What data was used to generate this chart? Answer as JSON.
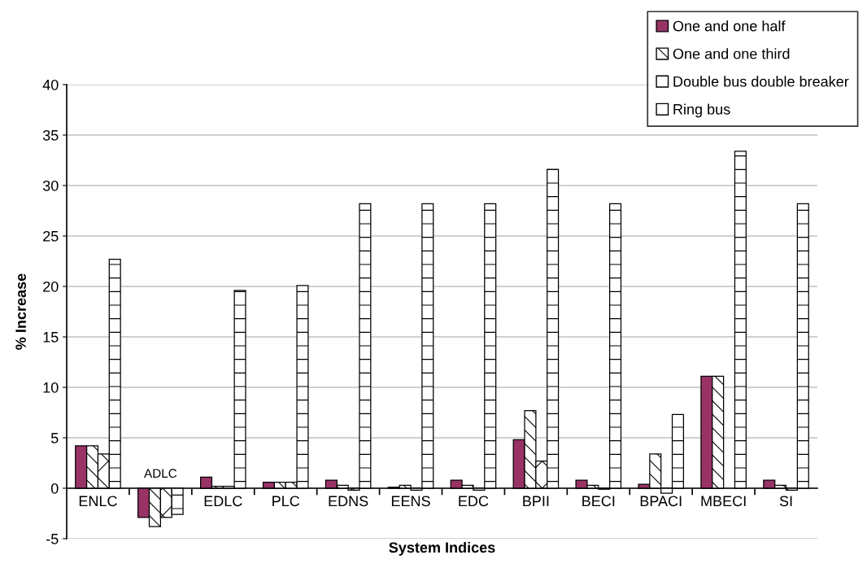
{
  "chart_data": {
    "type": "bar",
    "xlabel": "System Indices",
    "ylabel": "% Increase",
    "categories": [
      "ENLC",
      "ADLC",
      "EDLC",
      "PLC",
      "EDNS",
      "EENS",
      "EDC",
      "BPII",
      "BECI",
      "BPACI",
      "MBECI",
      "SI"
    ],
    "series": [
      {
        "name": "One and one half",
        "color": "#993366",
        "values": [
          4.2,
          -2.9,
          1.1,
          0.6,
          0.8,
          0.1,
          0.8,
          4.8,
          0.8,
          0.4,
          11.1,
          0.8
        ]
      },
      {
        "name": "One and one third",
        "color": "#ffffff",
        "values": [
          4.2,
          -3.8,
          0.2,
          0.6,
          0.3,
          0.3,
          0.3,
          7.7,
          0.3,
          3.4,
          11.1,
          0.3
        ]
      },
      {
        "name": "Double bus double breaker",
        "color": "#ffffff",
        "values": [
          3.4,
          -2.9,
          0.2,
          0.6,
          -0.2,
          -0.2,
          -0.2,
          2.7,
          -0.1,
          -0.5,
          null,
          -0.2
        ]
      },
      {
        "name": "Ring bus",
        "color": "#ffffff",
        "values": [
          22.7,
          -2.6,
          19.6,
          20.1,
          28.2,
          28.2,
          28.2,
          31.6,
          28.2,
          7.3,
          33.4,
          28.2
        ]
      }
    ],
    "ylim": [
      -5,
      40
    ],
    "yticks": [
      -5,
      0,
      5,
      10,
      15,
      20,
      25,
      30,
      35,
      40
    ],
    "grid": "y",
    "legend": "top right"
  }
}
